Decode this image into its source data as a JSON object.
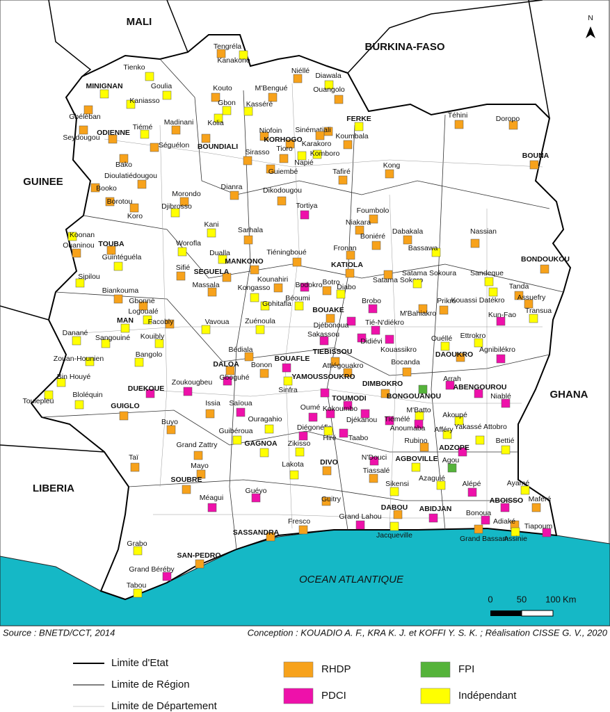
{
  "map": {
    "neighbors": [
      "MALI",
      "BURKINA-FASO",
      "GUINEE",
      "LIBERIA",
      "GHANA"
    ],
    "sea": "OCEAN ATLANTIQUE",
    "north": "N",
    "scale": {
      "ticks": [
        0,
        50,
        100
      ],
      "unit": "Km"
    },
    "party_colors": [
      "#f7a21b",
      "#ee11aa",
      "#55b33a",
      "#ffff00"
    ],
    "places": [
      {
        "label": "Tienko",
        "party": 3
      },
      {
        "label": "MINIGNAN",
        "party": 3
      },
      {
        "label": "Goulia",
        "party": 3
      },
      {
        "label": "Kaniasso",
        "party": 3
      },
      {
        "label": "Gbéléban",
        "party": 0
      },
      {
        "label": "Tiémé",
        "party": 3
      },
      {
        "label": "Seydougou",
        "party": 0
      },
      {
        "label": "ODIENNE",
        "party": 0
      },
      {
        "label": "Madinani",
        "party": 0
      },
      {
        "label": "Séguélon",
        "party": 0
      },
      {
        "label": "Bako",
        "party": 0
      },
      {
        "label": "Dioulatiédougou",
        "party": 0
      },
      {
        "label": "Booko",
        "party": 0
      },
      {
        "label": "Borotou",
        "party": 0
      },
      {
        "label": "Koro",
        "party": 0
      },
      {
        "label": "Koonan",
        "party": 3
      },
      {
        "label": "Ouaninou",
        "party": 0
      },
      {
        "label": "TOUBA",
        "party": 0
      },
      {
        "label": "Guintéguéla",
        "party": 3
      },
      {
        "label": "Sipilou",
        "party": 3
      },
      {
        "label": "Biankouma",
        "party": 0
      },
      {
        "label": "Gbonné",
        "party": 0
      },
      {
        "label": "Logoualé",
        "party": 3
      },
      {
        "label": "MAN",
        "party": 3
      },
      {
        "label": "Facobly",
        "party": 0
      },
      {
        "label": "Danané",
        "party": 3
      },
      {
        "label": "Sangouiné",
        "party": 3
      },
      {
        "label": "Kouibly",
        "party": 3
      },
      {
        "label": "Bangolo",
        "party": 3
      },
      {
        "label": "Zouan-Hounien",
        "party": 3
      },
      {
        "label": "Bin Houyé",
        "party": 3
      },
      {
        "label": "Toulepleu",
        "party": 3
      },
      {
        "label": "Bloléquin",
        "party": 3
      },
      {
        "label": "GUIGLO",
        "party": 0
      },
      {
        "label": "DUEKOUE",
        "party": 1
      },
      {
        "label": "Zoukougbeu",
        "party": 1
      },
      {
        "label": "Gboguhé",
        "party": 1
      },
      {
        "label": "DALOA",
        "party": 0
      },
      {
        "label": "Bonon",
        "party": 0
      },
      {
        "label": "Issia",
        "party": 0
      },
      {
        "label": "Saïoua",
        "party": 1
      },
      {
        "label": "Buyo",
        "party": 0
      },
      {
        "label": "Guibéroua",
        "party": 3
      },
      {
        "label": "Ouragahio",
        "party": 3
      },
      {
        "label": "Grand Zattry",
        "party": 0
      },
      {
        "label": "Mayo",
        "party": 0
      },
      {
        "label": "Taï",
        "party": 0
      },
      {
        "label": "SOUBRE",
        "party": 0
      },
      {
        "label": "Méagui",
        "party": 1
      },
      {
        "label": "Guéyo",
        "party": 1
      },
      {
        "label": "GAGNOA",
        "party": 3
      },
      {
        "label": "Zikisso",
        "party": 3
      },
      {
        "label": "Lakota",
        "party": 3
      },
      {
        "label": "SASSANDRA",
        "party": 0
      },
      {
        "label": "Fresco",
        "party": 0
      },
      {
        "label": "Grabo",
        "party": 3
      },
      {
        "label": "SAN-PEDRO",
        "party": 0
      },
      {
        "label": "Grand Béréby",
        "party": 1
      },
      {
        "label": "Tabou",
        "party": 3
      },
      {
        "label": "Tengréla",
        "party": 0
      },
      {
        "label": "Kanakono",
        "party": 3
      },
      {
        "label": "Kouto",
        "party": 0
      },
      {
        "label": "M'Bengué",
        "party": 0
      },
      {
        "label": "Niéllé",
        "party": 0
      },
      {
        "label": "Diawala",
        "party": 3
      },
      {
        "label": "Ouangolo",
        "party": 0
      },
      {
        "label": "Gbon",
        "party": 3
      },
      {
        "label": "Kasséré",
        "party": 3
      },
      {
        "label": "Kolia",
        "party": 3
      },
      {
        "label": "BOUNDIALI",
        "party": 0
      },
      {
        "label": "Niofoin",
        "party": 0
      },
      {
        "label": "KORHOGO",
        "party": 0
      },
      {
        "label": "Sinématiali",
        "party": 0
      },
      {
        "label": "Karakoro",
        "party": 0
      },
      {
        "label": "Komboro",
        "party": 3
      },
      {
        "label": "Koumbala",
        "party": 0
      },
      {
        "label": "FERKE",
        "party": 3
      },
      {
        "label": "Sirasso",
        "party": 0
      },
      {
        "label": "Tioro",
        "party": 0
      },
      {
        "label": "Napié",
        "party": 3
      },
      {
        "label": "Guiembé",
        "party": 0
      },
      {
        "label": "Tafiré",
        "party": 0
      },
      {
        "label": "Kong",
        "party": 0
      },
      {
        "label": "Téhini",
        "party": 0
      },
      {
        "label": "Doropo",
        "party": 0
      },
      {
        "label": "BOUNA",
        "party": 0
      },
      {
        "label": "Morondo",
        "party": 0
      },
      {
        "label": "Dianra",
        "party": 0
      },
      {
        "label": "Dikodougou",
        "party": 0
      },
      {
        "label": "Djibrosso",
        "party": 3
      },
      {
        "label": "Tortiya",
        "party": 1
      },
      {
        "label": "Foumbolo",
        "party": 0
      },
      {
        "label": "Niakara",
        "party": 0
      },
      {
        "label": "Dabakala",
        "party": 0
      },
      {
        "label": "Nassian",
        "party": 0
      },
      {
        "label": "Kani",
        "party": 3
      },
      {
        "label": "Sarhala",
        "party": 0
      },
      {
        "label": "Boniéré",
        "party": 0
      },
      {
        "label": "Worofla",
        "party": 3
      },
      {
        "label": "Dualla",
        "party": 3
      },
      {
        "label": "MANKONO",
        "party": 0
      },
      {
        "label": "Tiéningboué",
        "party": 0
      },
      {
        "label": "Fronan",
        "party": 0
      },
      {
        "label": "KATIOLA",
        "party": 0
      },
      {
        "label": "Bassawa",
        "party": 3
      },
      {
        "label": "BONDOUKOU",
        "party": 0
      },
      {
        "label": "Sifié",
        "party": 0
      },
      {
        "label": "SEGUELA",
        "party": 0
      },
      {
        "label": "Massala",
        "party": 0
      },
      {
        "label": "Kongasso",
        "party": 3
      },
      {
        "label": "Kounahiri",
        "party": 0
      },
      {
        "label": "Bodokro",
        "party": 1
      },
      {
        "label": "Botro",
        "party": 0
      },
      {
        "label": "Diabo",
        "party": 3
      },
      {
        "label": "Satama Sokoro",
        "party": 0
      },
      {
        "label": "Satama Sokoura",
        "party": 3
      },
      {
        "label": "Sandeque",
        "party": 3
      },
      {
        "label": "Tanda",
        "party": 0
      },
      {
        "label": "Kouassi Datékro",
        "party": 3
      },
      {
        "label": "Assuefry",
        "party": 0
      },
      {
        "label": "Béoumi",
        "party": 3
      },
      {
        "label": "Gohitafla",
        "party": 3
      },
      {
        "label": "BOUAKE",
        "party": 0
      },
      {
        "label": "Brobo",
        "party": 1
      },
      {
        "label": "M'Bahiakro",
        "party": 0
      },
      {
        "label": "Prikro",
        "party": 0
      },
      {
        "label": "Transua",
        "party": 3
      },
      {
        "label": "Kun-Fao",
        "party": 1
      },
      {
        "label": "Vavoua",
        "party": 3
      },
      {
        "label": "Zuénoula",
        "party": 3
      },
      {
        "label": "Djébonoua",
        "party": 1
      },
      {
        "label": "Tié-N'diékro",
        "party": 1
      },
      {
        "label": "Sakassou",
        "party": 1
      },
      {
        "label": "Didiévi",
        "party": 1
      },
      {
        "label": "Kouassikro",
        "party": 1
      },
      {
        "label": "Ouéllé",
        "party": 3
      },
      {
        "label": "Ettrokro",
        "party": 3
      },
      {
        "label": "Agnibilékro",
        "party": 1
      },
      {
        "label": "Bédiala",
        "party": 0
      },
      {
        "label": "TIEBISSOU",
        "party": 0
      },
      {
        "label": "BOUAFLE",
        "party": 1
      },
      {
        "label": "DAOUKRO",
        "party": 0
      },
      {
        "label": "Attiégouakro",
        "party": 0
      },
      {
        "label": "Bocanda",
        "party": 0
      },
      {
        "label": "YAMOUSSOUKRO",
        "party": 1
      },
      {
        "label": "DIMBOKRO",
        "party": 0
      },
      {
        "label": "Arrah",
        "party": 1
      },
      {
        "label": "ABENGOUROU",
        "party": 1
      },
      {
        "label": "Niablé",
        "party": 1
      },
      {
        "label": "BONGOUANOU",
        "party": 2
      },
      {
        "label": "TOUMODI",
        "party": 1
      },
      {
        "label": "Kokoumbo",
        "party": 1
      },
      {
        "label": "Oumé",
        "party": 1
      },
      {
        "label": "Sinfra",
        "party": 3
      },
      {
        "label": "Diégonéfla",
        "party": 1
      },
      {
        "label": "Hiré",
        "party": 3
      },
      {
        "label": "Djékanou",
        "party": 1
      },
      {
        "label": "Taabo",
        "party": 1
      },
      {
        "label": "Tiémélé",
        "party": 1
      },
      {
        "label": "M'Batto",
        "party": 3
      },
      {
        "label": "Anoumaba",
        "party": 1
      },
      {
        "label": "Akoupé",
        "party": 3
      },
      {
        "label": "Afféry",
        "party": 3
      },
      {
        "label": "Yakassé Attobro",
        "party": 3
      },
      {
        "label": "Rubino",
        "party": 0
      },
      {
        "label": "ADZOPE",
        "party": 1
      },
      {
        "label": "Agou",
        "party": 2
      },
      {
        "label": "Bettié",
        "party": 3
      },
      {
        "label": "N'Douci",
        "party": 1
      },
      {
        "label": "AGBOVILLE",
        "party": 3
      },
      {
        "label": "Azaguié",
        "party": 3
      },
      {
        "label": "DIVO",
        "party": 0
      },
      {
        "label": "Tiassalé",
        "party": 0
      },
      {
        "label": "Sikensi",
        "party": 3
      },
      {
        "label": "Alépé",
        "party": 1
      },
      {
        "label": "Ayamé",
        "party": 3
      },
      {
        "label": "Guitry",
        "party": 0
      },
      {
        "label": "ABOISSO",
        "party": 1
      },
      {
        "label": "Maféré",
        "party": 0
      },
      {
        "label": "Grand Lahou",
        "party": 1
      },
      {
        "label": "DABOU",
        "party": 0
      },
      {
        "label": "ABIDJAN",
        "party": 1
      },
      {
        "label": "Bonoua",
        "party": 1
      },
      {
        "label": "Adiaké",
        "party": 0
      },
      {
        "label": "Tiapoum",
        "party": 1
      },
      {
        "label": "Jacqueville",
        "party": 3
      },
      {
        "label": "Grand Bassam",
        "party": 0
      },
      {
        "label": "Assinie",
        "party": 3
      }
    ]
  },
  "source": "Source : BNETD/CCT, 2014",
  "credit": "Conception : KOUADIO A. F., KRA K. J. et KOFFI Y. S. K. ; Réalisation CISSE G. V., 2020",
  "legend": {
    "boundaries": [
      "Limite d'Etat",
      "Limite de Région",
      "Limite de Département"
    ],
    "parties": [
      "RHDP",
      "PDCI",
      "FPI",
      "Indépendant"
    ]
  }
}
